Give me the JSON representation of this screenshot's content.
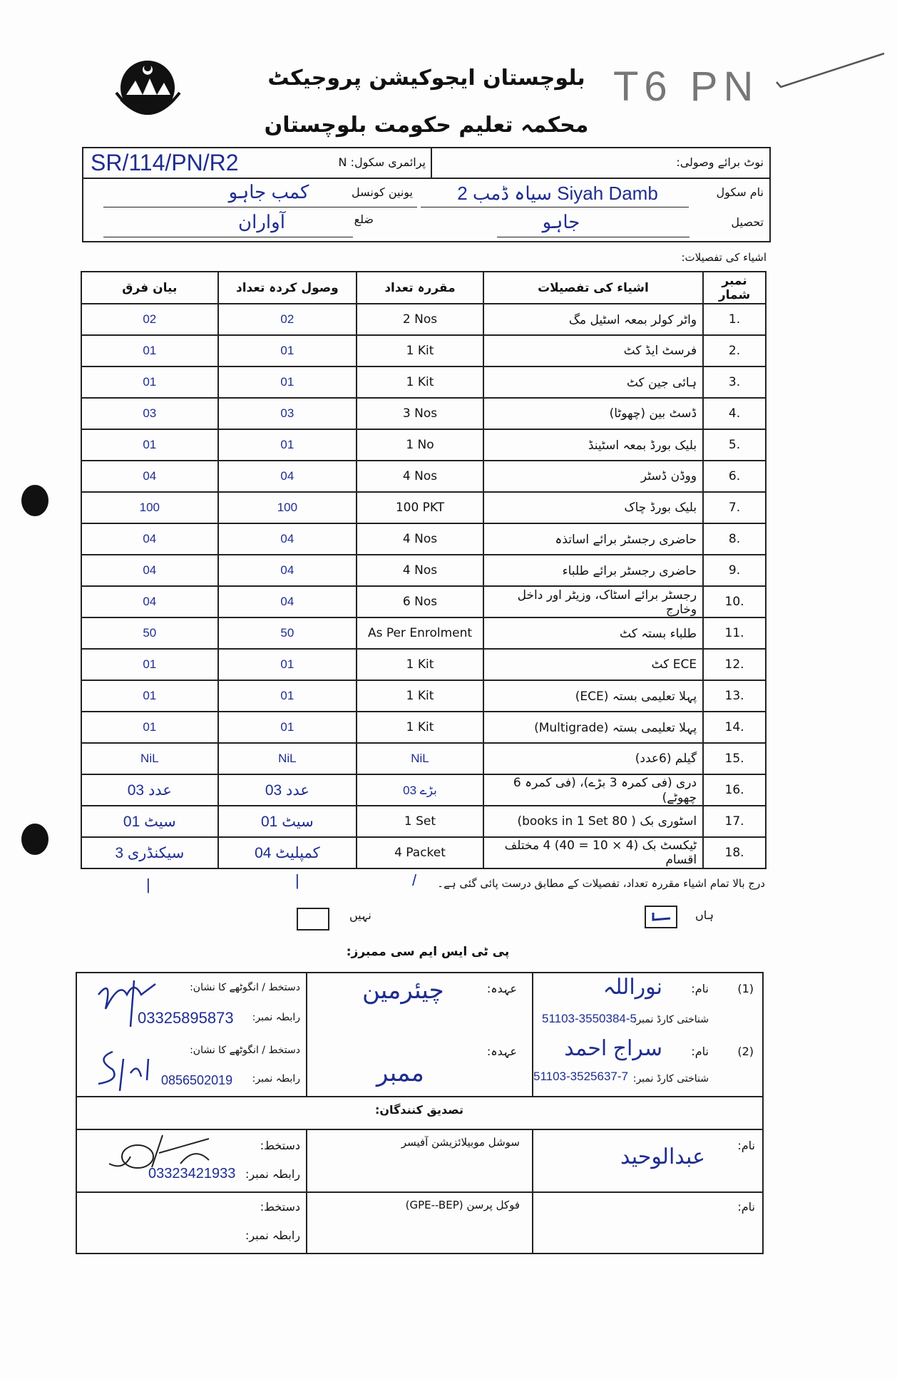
{
  "header": {
    "title_line1": "بلوچستان ایجوکیشن پروجیکٹ",
    "title_line2": "محکمہ تعلیم حکومت بلوچستان",
    "logo": "government-of-balochistan-seal",
    "handwritten_code": "T6 PN"
  },
  "info": {
    "receipt_note_label": "نوٹ برائے وصولی:",
    "primary_school_label": "پرائمری سکول: N",
    "reference": "SR/114/PN/R2",
    "school_name_label": "نام سکول",
    "school_name_value": "سیاہ ڈمب 2 Siyah Damb",
    "union_council_label": "یونین کونسل",
    "union_council_value": "کمب جاہو",
    "tehsil_label": "تحصیل",
    "tehsil_value": "جاہو",
    "district_label": "ضلع",
    "district_value": "آواران"
  },
  "items_caption": "اشیاء کی تفصیلات:",
  "items_table": {
    "columns": [
      "نمبر شمار",
      "اشیاء کی تفصیلات",
      "مقررہ تعداد",
      "وصول کردہ تعداد",
      "بیان فرق"
    ],
    "rows": [
      {
        "no": "1.",
        "item": "واٹر کولر بمعہ اسٹیل مگ",
        "fixed": "2 Nos",
        "received": "02",
        "difference": "02"
      },
      {
        "no": "2.",
        "item": "فرسٹ ایڈ کٹ",
        "fixed": "1 Kit",
        "received": "01",
        "difference": "01"
      },
      {
        "no": "3.",
        "item": "ہائی جین کٹ",
        "fixed": "1 Kit",
        "received": "01",
        "difference": "01"
      },
      {
        "no": "4.",
        "item": "ڈسٹ بین (چھوٹا)",
        "fixed": "3 Nos",
        "received": "03",
        "difference": "03"
      },
      {
        "no": "5.",
        "item": "بلیک بورڈ بمعہ اسٹینڈ",
        "fixed": "1 No",
        "received": "01",
        "difference": "01"
      },
      {
        "no": "6.",
        "item": "ووڈن ڈسٹر",
        "fixed": "4 Nos",
        "received": "04",
        "difference": "04"
      },
      {
        "no": "7.",
        "item": "بلیک بورڈ چاک",
        "fixed": "100 PKT",
        "received": "100",
        "difference": "100"
      },
      {
        "no": "8.",
        "item": "حاضری رجسٹر برائے اساتذہ",
        "fixed": "4 Nos",
        "received": "04",
        "difference": "04"
      },
      {
        "no": "9.",
        "item": "حاضری رجسٹر برائے طلباء",
        "fixed": "4 Nos",
        "received": "04",
        "difference": "04"
      },
      {
        "no": "10.",
        "item": "رجسٹر برائے اسٹاک، وزیٹر اور داخل وخارج",
        "fixed": "6 Nos",
        "received": "04",
        "difference": "04"
      },
      {
        "no": "11.",
        "item": "طلباء بستہ کٹ",
        "fixed": "As Per Enrolment",
        "received": "50",
        "difference": "50"
      },
      {
        "no": "12.",
        "item": "ECE کٹ",
        "fixed": "1 Kit",
        "received": "01",
        "difference": "01"
      },
      {
        "no": "13.",
        "item": "پہلا تعلیمی بستہ (ECE)",
        "fixed": "1 Kit",
        "received": "01",
        "difference": "01"
      },
      {
        "no": "14.",
        "item": "پہلا تعلیمی بستہ (Multigrade)",
        "fixed": "1 Kit",
        "received": "01",
        "difference": "01"
      },
      {
        "no": "15.",
        "item": "گیلم (6عدد)",
        "fixed": "NiL",
        "received": "NiL",
        "difference": "NiL"
      },
      {
        "no": "16.",
        "item": "دری (فی کمرہ 3 بڑے)، (فی کمرہ 6 چھوٹے)",
        "fixed": "03 بڑے",
        "received": "03 عدد",
        "difference": "03 عدد"
      },
      {
        "no": "17.",
        "item": "اسٹوری بک ( 80 books in 1 Set)",
        "fixed": "1 Set",
        "received": "01 سیٹ",
        "difference": "01 سیٹ"
      },
      {
        "no": "18.",
        "item": "ٹیکسٹ بک (4 × 10 = 40) 4 مختلف اقسام",
        "fixed": "4 Packet",
        "received": "04 کمپلیٹ",
        "difference": "3 سیکنڈری"
      }
    ]
  },
  "declaration": {
    "text": "درج بالا تمام اشیاء مقررہ تعداد، تفصیلات کے مطابق درست پائی گئی ہے۔",
    "yes_label": "ہاں",
    "no_label": "نہیں",
    "yes_checked": true,
    "no_checked": false
  },
  "ptsmc": {
    "title": "پی ٹی ایس ایم سی ممبرز:",
    "name_label": "نام:",
    "cnic_label": "شناختی کارڈ نمبر:",
    "designation_label": "عہدہ:",
    "signature_label": "دستخط / انگوٹھے کا نشان:",
    "contact_label": "رابطہ نمبر:",
    "members": [
      {
        "index": "(1)",
        "name": "نوراللہ",
        "cnic": "51103-3550384-5",
        "designation": "چیئرمین",
        "contact": "03325895873"
      },
      {
        "index": "(2)",
        "name": "سراج احمد",
        "cnic": "51103-3525637-7",
        "designation": "ممبر",
        "contact": "0856502019"
      }
    ]
  },
  "verifiers": {
    "title": "تصدیق کنندگان:",
    "name_label": "نام:",
    "signature_label": "دستخط:",
    "contact_label": "رابطہ نمبر:",
    "rows": [
      {
        "name": "عبدالوحید",
        "role": "سوشل موبیلائزیشن آفیسر",
        "contact": "03323421933"
      },
      {
        "name": "",
        "role": "فوکل پرسن (GPE--BEP)",
        "contact": ""
      }
    ]
  },
  "colors": {
    "ink": "#1f2d8f",
    "print": "#111111"
  }
}
